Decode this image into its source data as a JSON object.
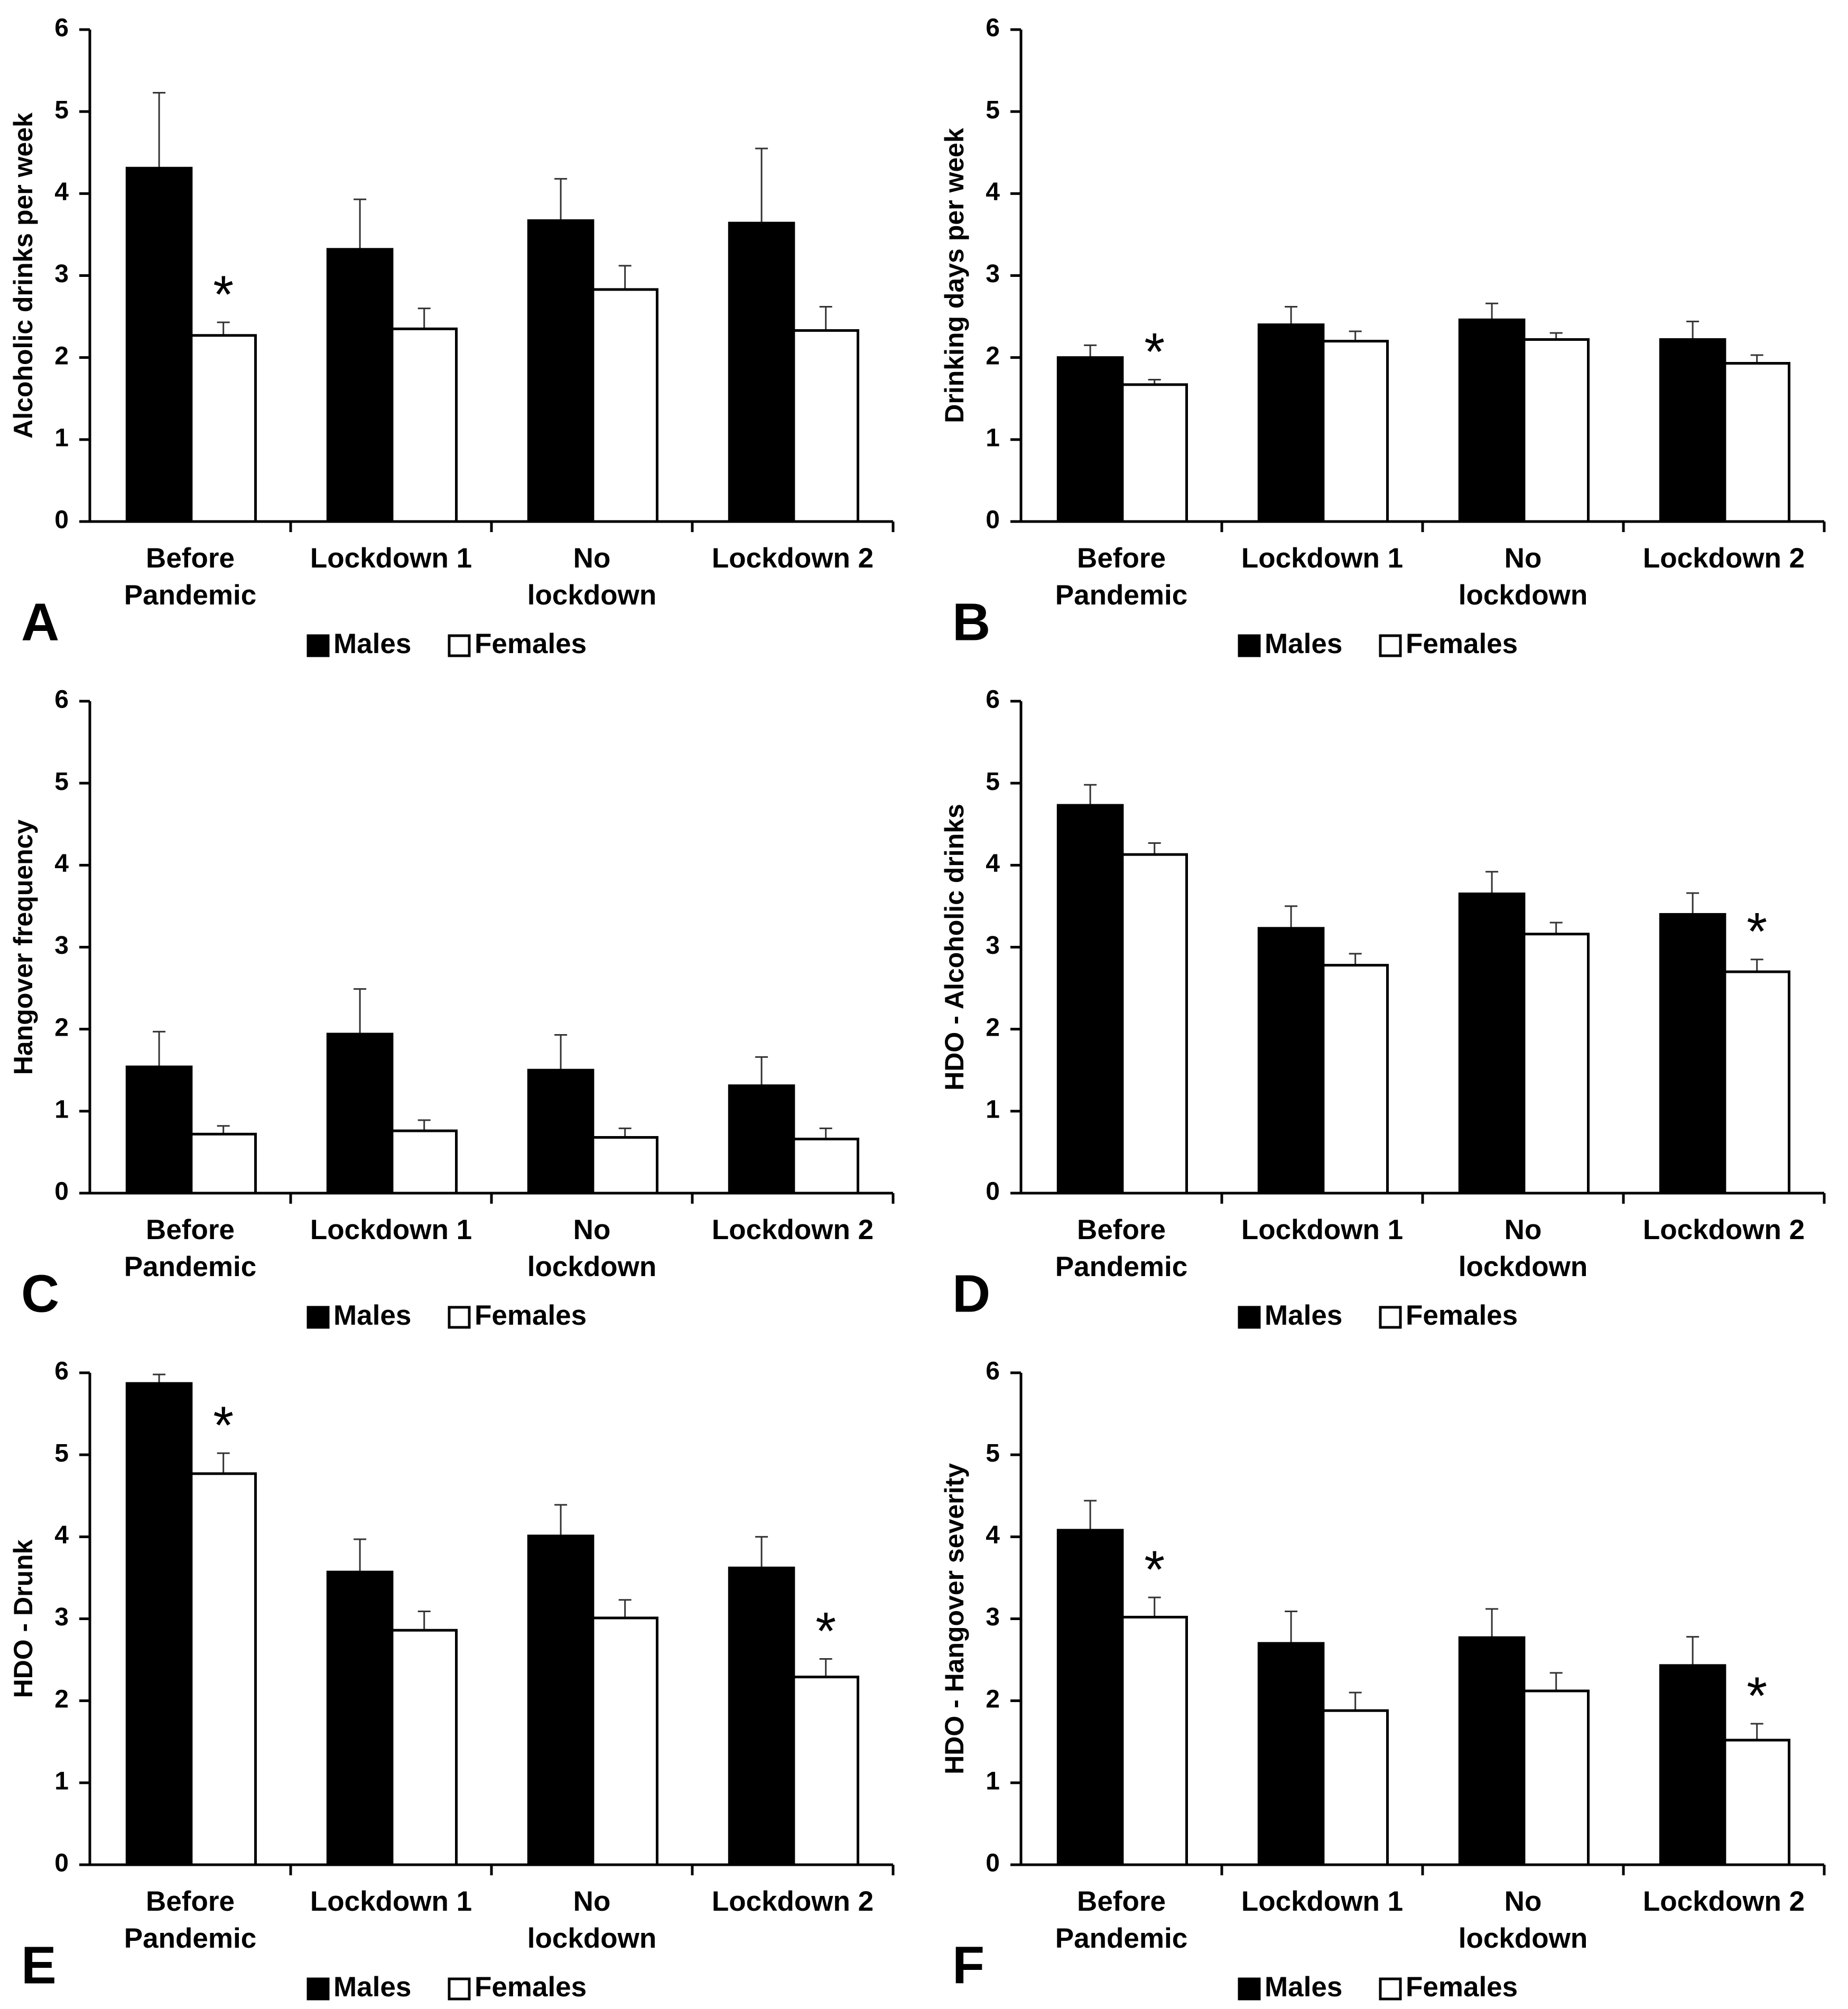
{
  "chart_data": [
    {
      "type": "bar",
      "panel": "A",
      "ylabel": "Alcoholic drinks per week",
      "categories": [
        "Before\nPandemic",
        "Lockdown 1",
        "No\nlockdown",
        "Lockdown 2"
      ],
      "series": [
        {
          "name": "Males",
          "color": "#000000",
          "values": [
            4.31,
            3.32,
            3.67,
            3.64
          ],
          "errors": [
            0.92,
            0.61,
            0.51,
            0.91
          ]
        },
        {
          "name": "Females",
          "color": "#ffffff",
          "values": [
            2.27,
            2.35,
            2.83,
            2.33
          ],
          "errors": [
            0.16,
            0.25,
            0.29,
            0.29
          ],
          "labels": [
            "*",
            null,
            null,
            null
          ]
        }
      ],
      "ylim": [
        0,
        6
      ],
      "yticks": [
        0,
        1,
        2,
        3,
        4,
        5,
        6
      ]
    },
    {
      "type": "bar",
      "panel": "B",
      "ylabel": "Drinking days per week",
      "categories": [
        "Before\nPandemic",
        "Lockdown 1",
        "No\nlockdown",
        "Lockdown 2"
      ],
      "series": [
        {
          "name": "Males",
          "color": "#000000",
          "values": [
            2.0,
            2.4,
            2.46,
            2.22
          ],
          "errors": [
            0.15,
            0.22,
            0.2,
            0.22
          ]
        },
        {
          "name": "Females",
          "color": "#ffffff",
          "values": [
            1.67,
            2.2,
            2.22,
            1.93
          ],
          "errors": [
            0.06,
            0.12,
            0.08,
            0.1
          ],
          "labels": [
            "*",
            null,
            null,
            null
          ]
        }
      ],
      "ylim": [
        0,
        6
      ],
      "yticks": [
        0,
        1,
        2,
        3,
        4,
        5,
        6
      ]
    },
    {
      "type": "bar",
      "panel": "C",
      "ylabel": "Hangover frequency",
      "categories": [
        "Before\nPandemic",
        "Lockdown 1",
        "No\nlockdown",
        "Lockdown 2"
      ],
      "series": [
        {
          "name": "Males",
          "color": "#000000",
          "values": [
            1.54,
            1.94,
            1.5,
            1.31
          ],
          "errors": [
            0.43,
            0.55,
            0.43,
            0.35
          ]
        },
        {
          "name": "Females",
          "color": "#ffffff",
          "values": [
            0.72,
            0.76,
            0.68,
            0.66
          ],
          "errors": [
            0.1,
            0.13,
            0.11,
            0.13
          ]
        }
      ],
      "ylim": [
        0,
        6
      ],
      "yticks": [
        0,
        1,
        2,
        3,
        4,
        5,
        6
      ]
    },
    {
      "type": "bar",
      "panel": "D",
      "ylabel": "HDO - Alcoholic drinks",
      "categories": [
        "Before\nPandemic",
        "Lockdown 1",
        "No\nlockdown",
        "Lockdown 2"
      ],
      "series": [
        {
          "name": "Males",
          "color": "#000000",
          "values": [
            4.73,
            3.23,
            3.65,
            3.4
          ],
          "errors": [
            0.25,
            0.27,
            0.27,
            0.26
          ]
        },
        {
          "name": "Females",
          "color": "#ffffff",
          "values": [
            4.13,
            2.78,
            3.16,
            2.7
          ],
          "errors": [
            0.14,
            0.14,
            0.14,
            0.15
          ],
          "labels": [
            null,
            null,
            null,
            "*"
          ]
        }
      ],
      "ylim": [
        0,
        6
      ],
      "yticks": [
        0,
        1,
        2,
        3,
        4,
        5,
        6
      ]
    },
    {
      "type": "bar",
      "panel": "E",
      "ylabel": "HDO - Drunk",
      "categories": [
        "Before\nPandemic",
        "Lockdown 1",
        "No\nlockdown",
        "Lockdown 2"
      ],
      "series": [
        {
          "name": "Males",
          "color": "#000000",
          "values": [
            5.87,
            3.57,
            4.01,
            3.62
          ],
          "errors": [
            0.11,
            0.4,
            0.38,
            0.38
          ]
        },
        {
          "name": "Females",
          "color": "#ffffff",
          "values": [
            4.77,
            2.86,
            3.01,
            2.29
          ],
          "errors": [
            0.25,
            0.23,
            0.22,
            0.22
          ],
          "labels": [
            "*",
            null,
            null,
            "*"
          ]
        }
      ],
      "ylim": [
        0,
        6
      ],
      "yticks": [
        0,
        1,
        2,
        3,
        4,
        5,
        6
      ]
    },
    {
      "type": "bar",
      "panel": "F",
      "ylabel": "HDO - Hangover severity",
      "categories": [
        "Before\nPandemic",
        "Lockdown 1",
        "No\nlockdown",
        "Lockdown 2"
      ],
      "series": [
        {
          "name": "Males",
          "color": "#000000",
          "values": [
            4.08,
            2.7,
            2.77,
            2.43
          ],
          "errors": [
            0.36,
            0.39,
            0.35,
            0.35
          ]
        },
        {
          "name": "Females",
          "color": "#ffffff",
          "values": [
            3.02,
            1.88,
            2.12,
            1.52
          ],
          "errors": [
            0.24,
            0.22,
            0.22,
            0.2
          ],
          "labels": [
            "*",
            null,
            null,
            "*"
          ]
        }
      ],
      "ylim": [
        0,
        6
      ],
      "yticks": [
        0,
        1,
        2,
        3,
        4,
        5,
        6
      ]
    }
  ]
}
